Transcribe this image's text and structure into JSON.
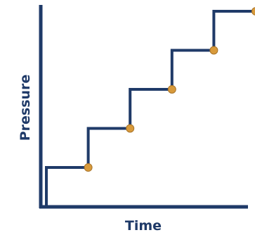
{
  "chart_data": {
    "type": "line",
    "title": "",
    "xlabel": "Time",
    "ylabel": "Pressure",
    "grid": false,
    "legend": "none",
    "x_ticks_shown": false,
    "y_ticks_shown": false,
    "step": true,
    "xlim": [
      0,
      5
    ],
    "ylim": [
      0,
      5
    ],
    "series": [
      {
        "line_color": "#1f3a68",
        "marker_color": "#d89a3b",
        "marker_stroke": "#a8742a",
        "points": [
          {
            "x": 0.0,
            "y": 0
          },
          {
            "x": 0.0,
            "y": 1
          },
          {
            "x": 1.0,
            "y": 1
          },
          {
            "x": 1.0,
            "y": 2
          },
          {
            "x": 2.0,
            "y": 2
          },
          {
            "x": 2.0,
            "y": 3
          },
          {
            "x": 3.0,
            "y": 3
          },
          {
            "x": 3.0,
            "y": 4
          },
          {
            "x": 4.0,
            "y": 4
          },
          {
            "x": 4.0,
            "y": 5
          },
          {
            "x": 5.0,
            "y": 5
          }
        ],
        "markers": [
          {
            "x": 1.0,
            "y": 1
          },
          {
            "x": 2.0,
            "y": 2
          },
          {
            "x": 3.0,
            "y": 3
          },
          {
            "x": 4.0,
            "y": 4
          },
          {
            "x": 5.0,
            "y": 5
          }
        ]
      }
    ],
    "axis_color": "#1f3a68"
  }
}
